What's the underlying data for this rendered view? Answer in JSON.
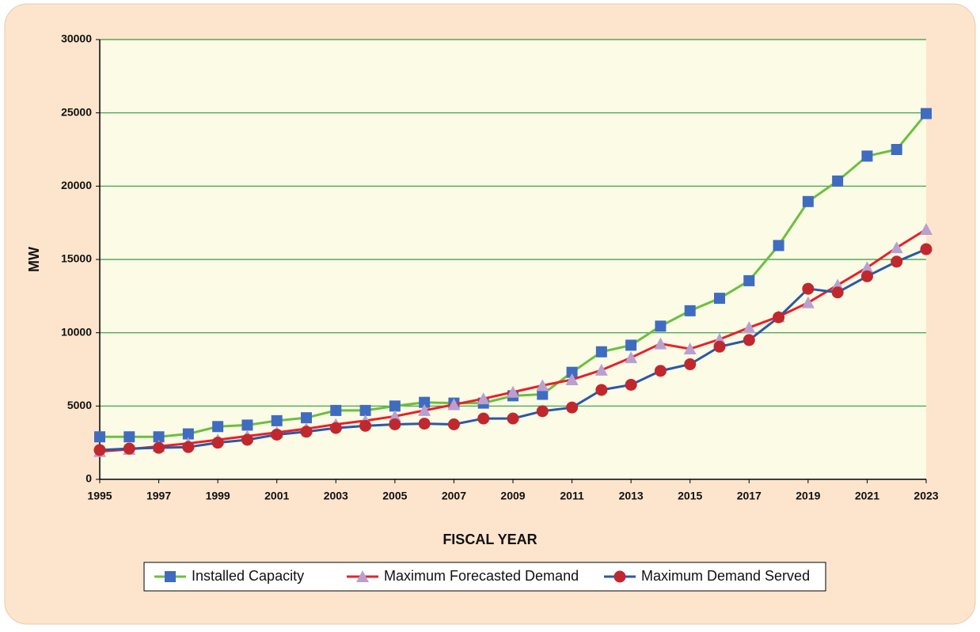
{
  "chart_data": {
    "type": "line",
    "xlabel": "FISCAL YEAR",
    "ylabel": "MW",
    "x": [
      1995,
      1996,
      1997,
      1998,
      1999,
      2000,
      2001,
      2002,
      2003,
      2004,
      2005,
      2006,
      2007,
      2008,
      2009,
      2010,
      2011,
      2012,
      2013,
      2014,
      2015,
      2016,
      2017,
      2018,
      2019,
      2020,
      2021,
      2022,
      2023
    ],
    "xlim": [
      1995,
      2023
    ],
    "xticks": [
      1995,
      1997,
      1999,
      2001,
      2003,
      2005,
      2007,
      2009,
      2011,
      2013,
      2015,
      2017,
      2019,
      2021,
      2023
    ],
    "ylim": [
      0,
      30000
    ],
    "yticks": [
      0,
      5000,
      10000,
      15000,
      20000,
      25000,
      30000
    ],
    "grid": true,
    "legend": "bottom",
    "series": [
      {
        "name": "Installed Capacity",
        "color": "#6cbf3f",
        "marker": "square",
        "marker_color": "#3f6cc0",
        "values": [
          2900,
          2900,
          2900,
          3100,
          3600,
          3700,
          4000,
          4200,
          4700,
          4700,
          5000,
          5250,
          5200,
          5200,
          5700,
          5800,
          7300,
          8700,
          9150,
          10450,
          11500,
          12350,
          13550,
          15950,
          18950,
          20350,
          22050,
          22500,
          24950
        ]
      },
      {
        "name": "Maximum Forecasted Demand",
        "color": "#e8202a",
        "marker": "triangle",
        "marker_color": "#b9a0d0",
        "values": [
          1900,
          2050,
          2250,
          2450,
          2700,
          2950,
          3200,
          3450,
          3750,
          4000,
          4300,
          4700,
          5100,
          5500,
          5950,
          6400,
          6800,
          7450,
          8300,
          9250,
          8900,
          9550,
          10350,
          11100,
          12050,
          13250,
          14450,
          15800,
          17050
        ]
      },
      {
        "name": "Maximum Demand Served",
        "color": "#2b58a6",
        "marker": "circle",
        "marker_color": "#c0282d",
        "values": [
          2000,
          2100,
          2150,
          2200,
          2500,
          2700,
          3050,
          3250,
          3500,
          3650,
          3750,
          3800,
          3750,
          4150,
          4150,
          4650,
          4900,
          6100,
          6450,
          7400,
          7850,
          9050,
          9500,
          11050,
          13000,
          12750,
          13850,
          14850,
          15700
        ]
      }
    ]
  }
}
